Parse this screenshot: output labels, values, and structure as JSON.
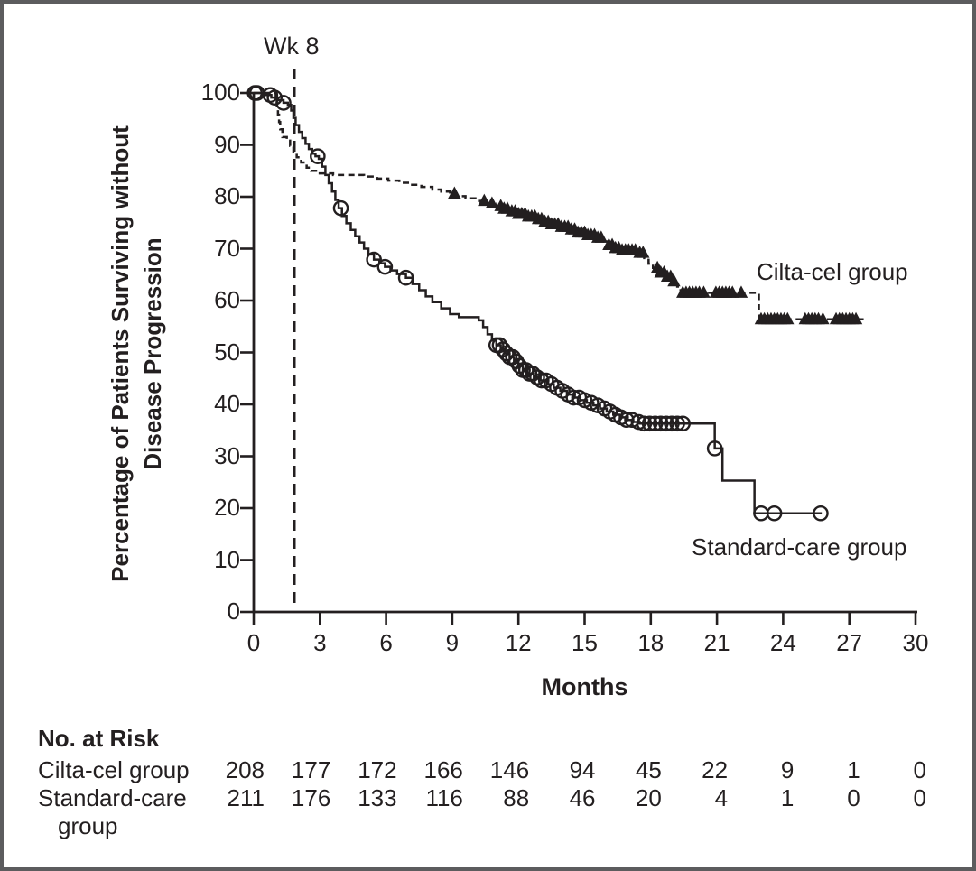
{
  "figure": {
    "wk8_label": "Wk 8",
    "ylabel_line1": "Percentage of Patients Surviving without",
    "ylabel_line2": "Disease Progression"
  },
  "chart_data": {
    "type": "line",
    "subtype": "kaplan-meier-step",
    "title": "",
    "xlabel": "Months",
    "ylabel": "Percentage of Patients Surviving without Disease Progression",
    "xlim": [
      0,
      30
    ],
    "ylim": [
      0,
      100
    ],
    "xticks": [
      0,
      3,
      6,
      9,
      12,
      15,
      18,
      21,
      24,
      27,
      30
    ],
    "yticks": [
      0,
      10,
      20,
      30,
      40,
      50,
      60,
      70,
      80,
      90,
      100
    ],
    "grid": false,
    "legend_position": "inline-labels",
    "annotations": [
      {
        "text": "Wk 8",
        "type": "dashed-vline",
        "x": 1.85
      }
    ],
    "series": [
      {
        "name": "Cilta-cel group",
        "line_style": "dashed",
        "marker": "filled-triangle",
        "color": "#231f20",
        "end_month": 27.65,
        "steps": [
          [
            0,
            100
          ],
          [
            1.0,
            98.6
          ],
          [
            1.05,
            97.2
          ],
          [
            1.1,
            95.8
          ],
          [
            1.15,
            94.4
          ],
          [
            1.2,
            93.0
          ],
          [
            1.3,
            91.5
          ],
          [
            1.5,
            90.8
          ],
          [
            1.65,
            89.8
          ],
          [
            1.8,
            88.6
          ],
          [
            1.95,
            87.6
          ],
          [
            2.15,
            86.6
          ],
          [
            2.4,
            85.6
          ],
          [
            2.6,
            85.0
          ],
          [
            2.9,
            84.5
          ],
          [
            3.6,
            84.2
          ],
          [
            5.0,
            83.9
          ],
          [
            5.6,
            83.5
          ],
          [
            6.1,
            83.1
          ],
          [
            6.6,
            82.7
          ],
          [
            7.1,
            82.3
          ],
          [
            7.6,
            81.9
          ],
          [
            8.1,
            81.4
          ],
          [
            8.5,
            81.0
          ],
          [
            8.9,
            80.6
          ],
          [
            9.2,
            80.1
          ],
          [
            9.6,
            79.7
          ],
          [
            10.1,
            79.2
          ],
          [
            10.6,
            78.7
          ],
          [
            11.0,
            78.2
          ],
          [
            11.3,
            77.7
          ],
          [
            11.7,
            77.2
          ],
          [
            12.0,
            76.7
          ],
          [
            12.4,
            76.2
          ],
          [
            12.8,
            75.7
          ],
          [
            13.1,
            75.2
          ],
          [
            13.5,
            74.7
          ],
          [
            13.9,
            74.2
          ],
          [
            14.3,
            73.7
          ],
          [
            14.7,
            73.1
          ],
          [
            15.1,
            72.6
          ],
          [
            15.5,
            72.1
          ],
          [
            15.9,
            71.4
          ],
          [
            16.1,
            70.7
          ],
          [
            16.4,
            70.1
          ],
          [
            16.7,
            69.7
          ],
          [
            17.4,
            69.2
          ],
          [
            17.7,
            68.2
          ],
          [
            17.9,
            67.1
          ],
          [
            18.1,
            66.3
          ],
          [
            18.4,
            65.4
          ],
          [
            18.7,
            64.6
          ],
          [
            19.0,
            63.7
          ],
          [
            19.2,
            62.7
          ],
          [
            19.35,
            61.5
          ],
          [
            22.9,
            56.4
          ]
        ],
        "censor_marks": [
          9.1,
          10.45,
          10.8,
          11.2,
          11.35,
          11.5,
          11.7,
          11.85,
          12.0,
          12.15,
          12.3,
          12.45,
          12.6,
          12.75,
          12.9,
          13.05,
          13.2,
          13.35,
          13.5,
          13.65,
          13.8,
          13.95,
          14.1,
          14.25,
          14.4,
          14.55,
          14.7,
          14.85,
          15.0,
          15.15,
          15.3,
          15.45,
          15.6,
          15.75,
          16.1,
          16.25,
          16.4,
          16.55,
          16.7,
          16.85,
          17.0,
          17.15,
          17.3,
          17.5,
          17.65,
          18.3,
          18.45,
          18.6,
          18.75,
          18.9,
          19.05,
          19.45,
          19.6,
          19.75,
          19.9,
          20.05,
          20.2,
          20.4,
          20.95,
          21.1,
          21.25,
          21.4,
          21.55,
          21.7,
          22.1,
          23.0,
          23.15,
          23.3,
          23.45,
          23.6,
          23.75,
          23.9,
          24.05,
          24.2,
          25.0,
          25.15,
          25.3,
          25.45,
          25.6,
          25.8,
          26.4,
          26.55,
          26.7,
          26.85,
          27.0,
          27.15,
          27.3
        ]
      },
      {
        "name": "Standard-care group",
        "line_style": "solid",
        "marker": "open-circle",
        "color": "#231f20",
        "end_month": 25.75,
        "steps": [
          [
            0,
            100
          ],
          [
            0.5,
            99.6
          ],
          [
            0.8,
            99.1
          ],
          [
            1.1,
            98.6
          ],
          [
            1.35,
            98.1
          ],
          [
            1.55,
            97.7
          ],
          [
            1.7,
            96.6
          ],
          [
            1.8,
            95.2
          ],
          [
            1.9,
            93.8
          ],
          [
            2.05,
            92.5
          ],
          [
            2.2,
            91.3
          ],
          [
            2.35,
            90.2
          ],
          [
            2.5,
            89.2
          ],
          [
            2.65,
            88.3
          ],
          [
            2.8,
            87.8
          ],
          [
            2.95,
            87.3
          ],
          [
            3.1,
            85.8
          ],
          [
            3.25,
            84.2
          ],
          [
            3.4,
            82.6
          ],
          [
            3.55,
            81.0
          ],
          [
            3.7,
            79.4
          ],
          [
            3.85,
            77.8
          ],
          [
            4.0,
            76.3
          ],
          [
            4.2,
            74.9
          ],
          [
            4.4,
            73.6
          ],
          [
            4.6,
            72.4
          ],
          [
            4.8,
            71.2
          ],
          [
            5.0,
            70.0
          ],
          [
            5.2,
            68.9
          ],
          [
            5.45,
            67.9
          ],
          [
            5.7,
            67.2
          ],
          [
            5.95,
            66.5
          ],
          [
            6.2,
            65.8
          ],
          [
            6.5,
            65.1
          ],
          [
            6.9,
            64.4
          ],
          [
            7.2,
            63.2
          ],
          [
            7.5,
            62.0
          ],
          [
            7.8,
            60.8
          ],
          [
            8.1,
            59.7
          ],
          [
            8.5,
            58.5
          ],
          [
            8.9,
            57.4
          ],
          [
            9.3,
            56.8
          ],
          [
            10.2,
            56.2
          ],
          [
            10.4,
            54.9
          ],
          [
            10.6,
            53.5
          ],
          [
            10.8,
            52.3
          ],
          [
            11.0,
            51.4
          ],
          [
            11.2,
            50.6
          ],
          [
            11.4,
            49.8
          ],
          [
            11.6,
            49.1
          ],
          [
            11.8,
            48.3
          ],
          [
            12.0,
            47.4
          ],
          [
            12.2,
            46.6
          ],
          [
            12.4,
            45.9
          ],
          [
            12.7,
            45.2
          ],
          [
            13.0,
            44.6
          ],
          [
            13.3,
            43.9
          ],
          [
            13.6,
            43.2
          ],
          [
            13.9,
            42.6
          ],
          [
            14.2,
            41.9
          ],
          [
            14.5,
            41.3
          ],
          [
            14.8,
            40.8
          ],
          [
            15.1,
            40.3
          ],
          [
            15.4,
            39.8
          ],
          [
            15.7,
            39.2
          ],
          [
            16.0,
            38.6
          ],
          [
            16.3,
            38.0
          ],
          [
            16.6,
            37.5
          ],
          [
            16.9,
            37.0
          ],
          [
            17.2,
            36.6
          ],
          [
            17.5,
            36.3
          ],
          [
            20.9,
            31.5
          ],
          [
            21.25,
            25.3
          ],
          [
            22.7,
            19.0
          ]
        ],
        "censor_marks": [
          0.05,
          0.15,
          0.75,
          0.95,
          1.35,
          2.9,
          3.95,
          5.45,
          5.95,
          6.9,
          11.0,
          11.15,
          11.3,
          11.45,
          11.6,
          11.75,
          11.9,
          12.05,
          12.2,
          12.35,
          12.5,
          12.65,
          12.85,
          13.05,
          13.25,
          13.5,
          13.75,
          14.0,
          14.25,
          14.5,
          14.75,
          15.0,
          15.3,
          15.6,
          15.9,
          16.15,
          16.4,
          16.65,
          16.9,
          17.15,
          17.45,
          17.7,
          17.95,
          18.2,
          18.45,
          18.7,
          18.95,
          19.2,
          19.45,
          20.9,
          23.0,
          23.6,
          25.7
        ]
      }
    ]
  },
  "risk_table": {
    "header": "No. at Risk",
    "months": [
      0,
      3,
      6,
      9,
      12,
      15,
      18,
      21,
      24,
      27,
      30
    ],
    "rows": [
      {
        "label": "Cilta-cel group",
        "label_line2": "",
        "values": [
          208,
          177,
          172,
          166,
          146,
          94,
          45,
          22,
          9,
          1,
          0
        ]
      },
      {
        "label": "Standard-care",
        "label_line2": "group",
        "values": [
          211,
          176,
          133,
          116,
          88,
          46,
          20,
          4,
          1,
          0,
          0
        ]
      }
    ]
  },
  "colors": {
    "line": "#231f20",
    "border": "#5c5c5e",
    "background": "#ffffff"
  }
}
